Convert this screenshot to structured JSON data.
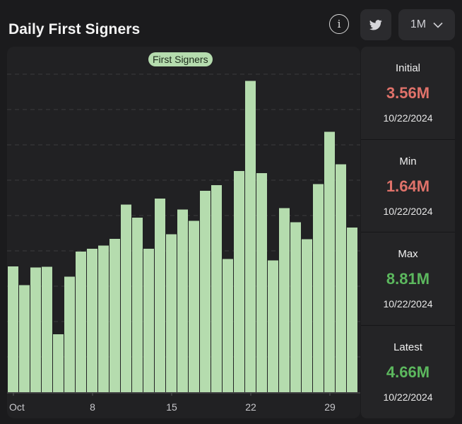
{
  "header": {
    "title": "Daily First Signers",
    "range_label": "1M"
  },
  "colors": {
    "bar": "#b5dcae",
    "value_low": "#e0726a",
    "value_high": "#5cb85e"
  },
  "stats": [
    {
      "label": "Initial",
      "value": "3.56M",
      "date": "10/22/2024",
      "tone": "red"
    },
    {
      "label": "Min",
      "value": "1.64M",
      "date": "10/22/2024",
      "tone": "red"
    },
    {
      "label": "Max",
      "value": "8.81M",
      "date": "10/22/2024",
      "tone": "green"
    },
    {
      "label": "Latest",
      "value": "4.66M",
      "date": "10/22/2024",
      "tone": "green"
    }
  ],
  "chart_data": {
    "type": "bar",
    "title": "Daily First Signers",
    "legend": [
      "First Signers"
    ],
    "categories": [
      "Oct 1",
      "Oct 2",
      "Oct 3",
      "Oct 4",
      "Oct 5",
      "Oct 6",
      "Oct 7",
      "Oct 8",
      "Oct 9",
      "Oct 10",
      "Oct 11",
      "Oct 12",
      "Oct 13",
      "Oct 14",
      "Oct 15",
      "Oct 16",
      "Oct 17",
      "Oct 18",
      "Oct 19",
      "Oct 20",
      "Oct 21",
      "Oct 22",
      "Oct 23",
      "Oct 24",
      "Oct 25",
      "Oct 26",
      "Oct 27",
      "Oct 28",
      "Oct 29",
      "Oct 30",
      "Oct 31"
    ],
    "values": [
      3.56,
      3.03,
      3.53,
      3.55,
      1.64,
      3.27,
      3.98,
      4.06,
      4.15,
      4.34,
      5.31,
      4.94,
      4.06,
      5.48,
      4.47,
      5.17,
      4.85,
      5.7,
      5.86,
      3.77,
      6.26,
      8.81,
      6.2,
      3.73,
      5.21,
      4.81,
      4.33,
      5.89,
      7.37,
      6.45,
      4.66
    ],
    "unit": "M",
    "ylim": [
      0,
      9
    ],
    "grid": true,
    "xtick_labels": [
      {
        "index": 0,
        "label": "Oct"
      },
      {
        "index": 7,
        "label": "8"
      },
      {
        "index": 14,
        "label": "15"
      },
      {
        "index": 21,
        "label": "22"
      },
      {
        "index": 28,
        "label": "29"
      }
    ]
  }
}
